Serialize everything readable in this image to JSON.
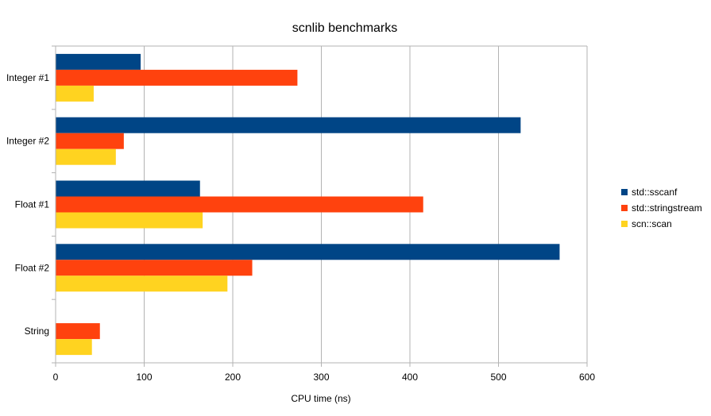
{
  "chart_data": {
    "type": "bar",
    "orientation": "horizontal",
    "title": "scnlib benchmarks",
    "xlabel": "CPU time (ns)",
    "ylabel": "",
    "xlim": [
      0,
      600
    ],
    "xticks": [
      0,
      100,
      200,
      300,
      400,
      500,
      600
    ],
    "grid": true,
    "legend_position": "right",
    "categories": [
      "Integer #1",
      "Integer #2",
      "Float #1",
      "Float #2",
      "String"
    ],
    "series": [
      {
        "name": "std::sscanf",
        "color": "#004586",
        "values": [
          96,
          525,
          163,
          569,
          null
        ]
      },
      {
        "name": "std::stringstream",
        "color": "#ff420e",
        "values": [
          273,
          77,
          415,
          222,
          50
        ]
      },
      {
        "name": "scn::scan",
        "color": "#ffd320",
        "values": [
          43,
          68,
          166,
          194,
          41
        ]
      }
    ]
  }
}
